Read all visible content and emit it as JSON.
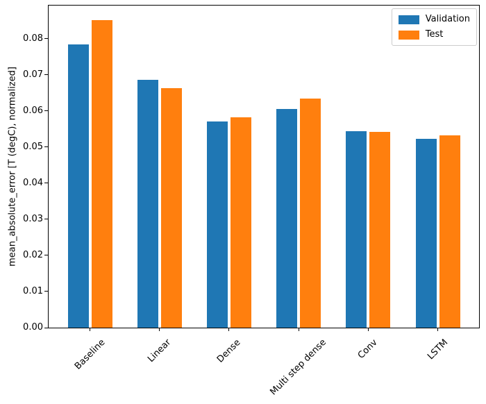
{
  "chart_data": {
    "type": "bar",
    "title": "",
    "categories": [
      "Baseline",
      "Linear",
      "Dense",
      "Multi step dense",
      "Conv",
      "LSTM"
    ],
    "series": [
      {
        "name": "Validation",
        "color": "#1f77b4",
        "values": [
          0.0785,
          0.0686,
          0.0572,
          0.0606,
          0.0545,
          0.0523
        ]
      },
      {
        "name": "Test",
        "color": "#ff7f0e",
        "values": [
          0.0852,
          0.0663,
          0.0583,
          0.0634,
          0.0542,
          0.0533
        ]
      }
    ],
    "xlabel": "",
    "ylabel": "mean_absolute_error [T (degC), normalized]",
    "ylim": [
      0,
      0.0892
    ],
    "yticks": [
      0.0,
      0.01,
      0.02,
      0.03,
      0.04,
      0.05,
      0.06,
      0.07,
      0.08
    ],
    "ytick_labels": [
      "0.00",
      "0.01",
      "0.02",
      "0.03",
      "0.04",
      "0.05",
      "0.06",
      "0.07",
      "0.08"
    ],
    "x_tick_rotation_deg": 45,
    "grid": false,
    "legend_position": "upper right"
  }
}
